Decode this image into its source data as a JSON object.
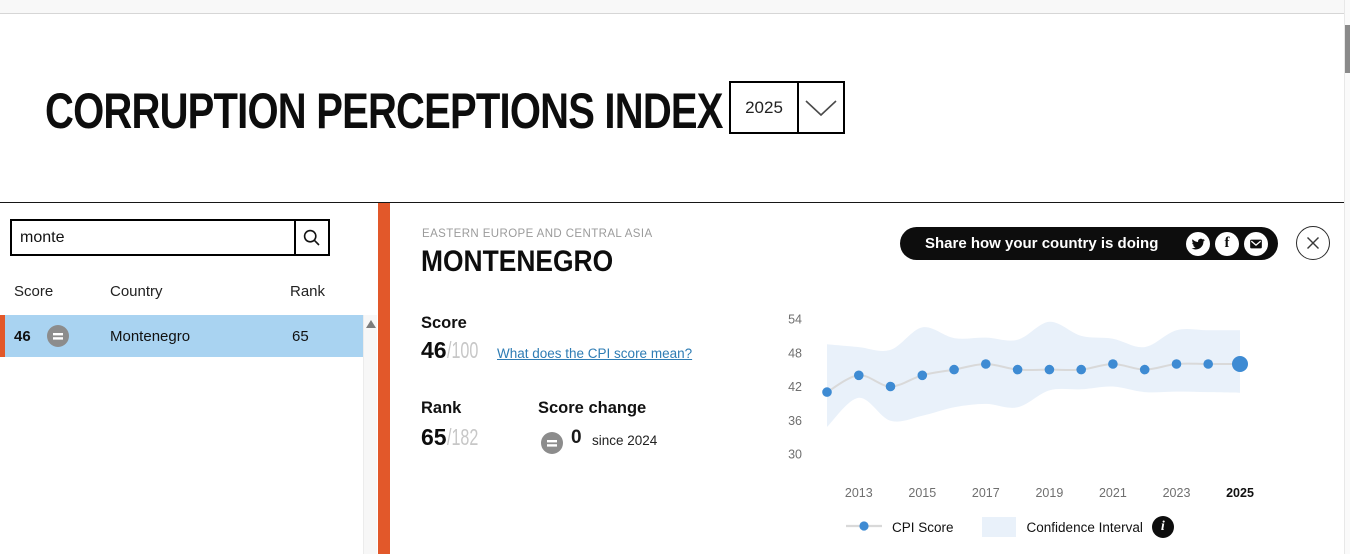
{
  "theme": {
    "accent": "#e2582a",
    "row-blue": "#a9d3f1",
    "badge-gray": "#8c8c8c",
    "link-blue": "#2e7cb4",
    "dot-blue": "#3e8bd3",
    "band-blue": "#e9f1fa",
    "line-gray": "#d9d9d9"
  },
  "top": {
    "title": "CORRUPTION PERCEPTIONS INDEX",
    "year": "2025"
  },
  "sidebar": {
    "search_value": "monte",
    "headers": [
      "Score",
      "Country",
      "Rank"
    ],
    "row": {
      "score": "46",
      "trend": "no change",
      "country": "Montenegro",
      "rank": "65"
    }
  },
  "detail": {
    "region": "EASTERN EUROPE AND CENTRAL ASIA",
    "country": "MONTENEGRO",
    "score_label": "Score",
    "score": "46",
    "score_denominator": "/100",
    "cpi_link": "What does the CPI score mean?",
    "rank_label": "Rank",
    "rank": "65",
    "rank_denominator": "/182",
    "change_label": "Score change",
    "change_value": "0",
    "change_caption": "since 2024",
    "share_label": "Share how your country is doing",
    "facebook_glyph": "f",
    "info_glyph": "i"
  },
  "chart_data": {
    "type": "line",
    "title": "CPI score trend",
    "x": [
      2012,
      2013,
      2014,
      2015,
      2016,
      2017,
      2018,
      2019,
      2020,
      2021,
      2022,
      2023,
      2024,
      2025
    ],
    "series": [
      {
        "name": "CPI Score",
        "values": [
          41,
          44,
          42,
          44,
          45,
          46,
          45,
          45,
          45,
          46,
          45,
          46,
          46,
          46
        ]
      }
    ],
    "confidence_interval": {
      "upper": [
        49.5,
        49,
        48.5,
        52.5,
        50.6,
        50.7,
        50.3,
        53.5,
        51,
        50.5,
        49,
        52,
        52,
        52
      ],
      "lower": [
        34.8,
        40,
        35.9,
        36.8,
        38.3,
        38.9,
        38.3,
        41.3,
        41.5,
        42,
        41,
        41.1,
        41,
        40.9
      ]
    },
    "xtick_labels": [
      "2013",
      "2015",
      "2017",
      "2019",
      "2021",
      "2023",
      "2025"
    ],
    "ytick_labels": [
      54,
      48,
      42,
      36,
      30
    ],
    "ylim": [
      30,
      54
    ],
    "highlight_year": 2025,
    "grid": false,
    "legend": [
      "CPI Score",
      "Confidence Interval"
    ],
    "legend_position": "bottom"
  }
}
